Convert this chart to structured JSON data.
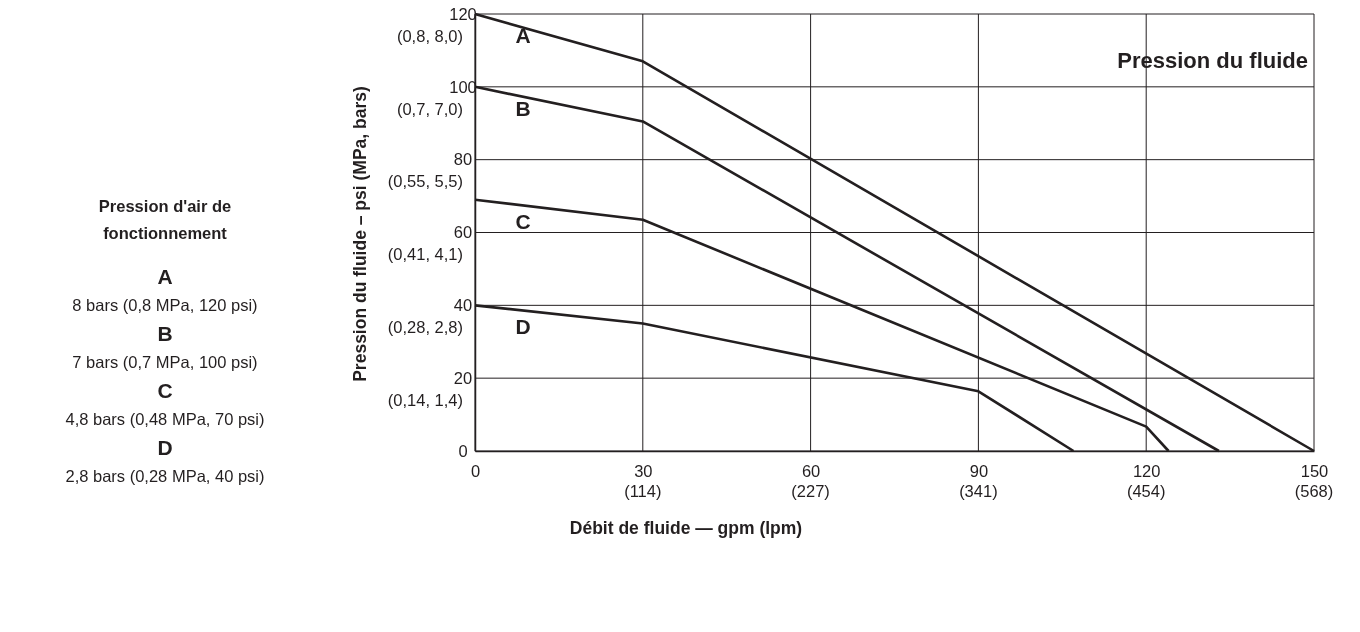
{
  "chart_data": {
    "type": "line",
    "title": "Pression du fluide",
    "xlabel": "Débit de fluide — gpm (lpm)",
    "ylabel": "Pression du fluide – psi (MPa, bars)",
    "legend_title": "Pression d'air de fonctionnement",
    "legend": "left",
    "grid": true,
    "line_style": "solid",
    "marker": "none",
    "xlim": [
      0,
      150
    ],
    "ylim": [
      0,
      120
    ],
    "xticks": [
      0,
      30,
      60,
      90,
      120,
      150
    ],
    "yticks": [
      0,
      20,
      40,
      60,
      80,
      100,
      120
    ],
    "series": [
      {
        "name": "A",
        "color": "#231f20",
        "x": [
          0,
          30,
          150
        ],
        "values": [
          120,
          107,
          0
        ]
      },
      {
        "name": "B",
        "color": "#231f20",
        "x": [
          0,
          30,
          133
        ],
        "values": [
          100,
          90.5,
          0
        ]
      },
      {
        "name": "C",
        "color": "#231f20",
        "x": [
          0,
          30,
          120,
          124
        ],
        "values": [
          69,
          63.5,
          6.7,
          0
        ]
      },
      {
        "name": "D",
        "color": "#231f20",
        "x": [
          0,
          30,
          90,
          107
        ],
        "values": [
          40,
          35,
          16.4,
          0
        ]
      }
    ],
    "annotations": [
      "8 bars (0,8 MPa, 120 psi)",
      "7 bars (0,7 MPa, 100 psi)",
      "4,8 bars (0,48 MPa, 70 psi)",
      "2,8 bars (0,28 MPa, 40 psi)",
      "(0,14, 1,4)",
      "(0,28, 2,8)",
      "(0,41, 4,1)",
      "(0,55, 5,5)",
      "(0,7, 7,0)",
      "(0,8, 8,0)",
      "(114)",
      "(227)",
      "(341)",
      "(454)",
      "(568)"
    ]
  }
}
